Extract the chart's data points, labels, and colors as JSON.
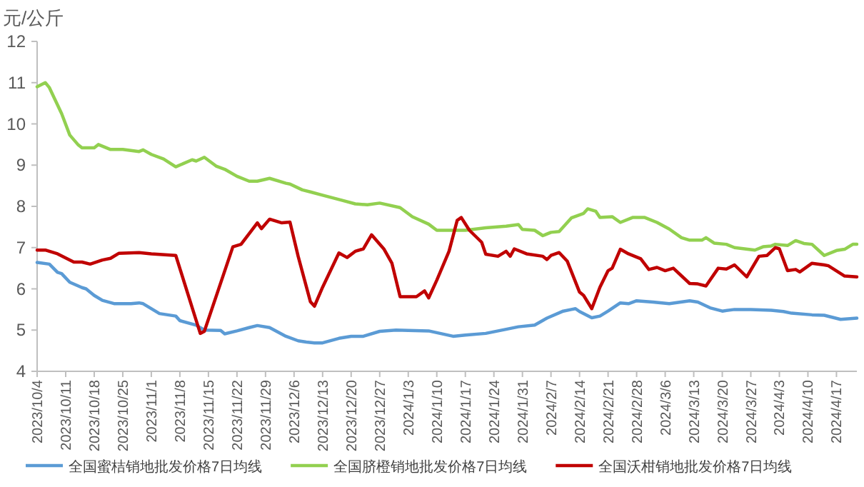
{
  "chart_data": {
    "type": "line",
    "ylabel": "元/公斤",
    "ylim": [
      4,
      12
    ],
    "yticks": [
      4,
      5,
      6,
      7,
      8,
      9,
      10,
      11,
      12
    ],
    "xlim": [
      "2023-10-04",
      "2024-04-22"
    ],
    "xticks": [
      {
        "value": "2023-10-04",
        "label": "2023/10/4"
      },
      {
        "value": "2023-10-11",
        "label": "2023/10/11"
      },
      {
        "value": "2023-10-18",
        "label": "2023/10/18"
      },
      {
        "value": "2023-10-25",
        "label": "2023/10/25"
      },
      {
        "value": "2023-11-01",
        "label": "2023/11/1"
      },
      {
        "value": "2023-11-08",
        "label": "2023/11/8"
      },
      {
        "value": "2023-11-15",
        "label": "2023/11/15"
      },
      {
        "value": "2023-11-22",
        "label": "2023/11/22"
      },
      {
        "value": "2023-11-29",
        "label": "2023/11/29"
      },
      {
        "value": "2023-12-06",
        "label": "2023/12/6"
      },
      {
        "value": "2023-12-13",
        "label": "2023/12/13"
      },
      {
        "value": "2023-12-20",
        "label": "2023/12/20"
      },
      {
        "value": "2023-12-27",
        "label": "2023/12/27"
      },
      {
        "value": "2024-01-03",
        "label": "2024/1/3"
      },
      {
        "value": "2024-01-10",
        "label": "2024/1/10"
      },
      {
        "value": "2024-01-17",
        "label": "2024/1/17"
      },
      {
        "value": "2024-01-24",
        "label": "2024/1/24"
      },
      {
        "value": "2024-01-31",
        "label": "2024/1/31"
      },
      {
        "value": "2024-02-07",
        "label": "2024/2/7"
      },
      {
        "value": "2024-02-14",
        "label": "2024/2/14"
      },
      {
        "value": "2024-02-21",
        "label": "2024/2/21"
      },
      {
        "value": "2024-02-28",
        "label": "2024/2/28"
      },
      {
        "value": "2024-03-06",
        "label": "2024/3/6"
      },
      {
        "value": "2024-03-13",
        "label": "2024/3/13"
      },
      {
        "value": "2024-03-20",
        "label": "2024/3/20"
      },
      {
        "value": "2024-03-27",
        "label": "2024/3/27"
      },
      {
        "value": "2024-04-03",
        "label": "2024/4/3"
      },
      {
        "value": "2024-04-10",
        "label": "2024/4/10"
      },
      {
        "value": "2024-04-17",
        "label": "2024/4/17"
      }
    ],
    "grid": false,
    "legend": "bottom",
    "series": [
      {
        "name": "全国蜜桔销地批发价格7日均线",
        "color": "#5b9bd5",
        "x": [
          "2023-10-04",
          "2023-10-07",
          "2023-10-09",
          "2023-10-10",
          "2023-10-12",
          "2023-10-15",
          "2023-10-16",
          "2023-10-18",
          "2023-10-20",
          "2023-10-23",
          "2023-10-27",
          "2023-10-29",
          "2023-10-30",
          "2023-11-03",
          "2023-11-07",
          "2023-11-08",
          "2023-11-12",
          "2023-11-14",
          "2023-11-18",
          "2023-11-19",
          "2023-11-22",
          "2023-11-25",
          "2023-11-27",
          "2023-11-30",
          "2023-12-04",
          "2023-12-07",
          "2023-12-09",
          "2023-12-11",
          "2023-12-13",
          "2023-12-17",
          "2023-12-20",
          "2023-12-23",
          "2023-12-27",
          "2023-12-31",
          "2024-01-03",
          "2024-01-08",
          "2024-01-14",
          "2024-01-17",
          "2024-01-22",
          "2024-01-27",
          "2024-01-30",
          "2024-02-03",
          "2024-02-06",
          "2024-02-10",
          "2024-02-12",
          "2024-02-13",
          "2024-02-14",
          "2024-02-17",
          "2024-02-19",
          "2024-02-21",
          "2024-02-24",
          "2024-02-26",
          "2024-02-28",
          "2024-03-03",
          "2024-03-07",
          "2024-03-12",
          "2024-03-14",
          "2024-03-17",
          "2024-03-20",
          "2024-03-23",
          "2024-03-27",
          "2024-04-01",
          "2024-04-04",
          "2024-04-06",
          "2024-04-11",
          "2024-04-14",
          "2024-04-18",
          "2024-04-22"
        ],
        "values": [
          6.64,
          6.6,
          6.4,
          6.37,
          6.16,
          6.03,
          6.0,
          5.84,
          5.72,
          5.64,
          5.64,
          5.66,
          5.64,
          5.4,
          5.34,
          5.23,
          5.12,
          5.0,
          4.99,
          4.91,
          4.98,
          5.06,
          5.11,
          5.06,
          4.85,
          4.74,
          4.71,
          4.69,
          4.69,
          4.8,
          4.85,
          4.85,
          4.97,
          5.0,
          4.99,
          4.98,
          4.85,
          4.88,
          4.92,
          5.02,
          5.08,
          5.12,
          5.29,
          5.46,
          5.5,
          5.52,
          5.45,
          5.3,
          5.34,
          5.46,
          5.66,
          5.64,
          5.71,
          5.68,
          5.64,
          5.71,
          5.68,
          5.54,
          5.46,
          5.5,
          5.5,
          5.48,
          5.45,
          5.41,
          5.37,
          5.36,
          5.26,
          5.29
        ]
      },
      {
        "name": "全国脐橙销地批发价格7日均线",
        "color": "#92d050",
        "x": [
          "2023-10-04",
          "2023-10-06",
          "2023-10-07",
          "2023-10-10",
          "2023-10-12",
          "2023-10-14",
          "2023-10-15",
          "2023-10-18",
          "2023-10-19",
          "2023-10-22",
          "2023-10-25",
          "2023-10-29",
          "2023-10-30",
          "2023-11-01",
          "2023-11-04",
          "2023-11-07",
          "2023-11-11",
          "2023-11-12",
          "2023-11-14",
          "2023-11-17",
          "2023-11-19",
          "2023-11-22",
          "2023-11-25",
          "2023-11-27",
          "2023-11-30",
          "2023-12-04",
          "2023-12-05",
          "2023-12-08",
          "2023-12-10",
          "2023-12-13",
          "2023-12-18",
          "2023-12-21",
          "2023-12-24",
          "2023-12-27",
          "2024-01-01",
          "2024-01-04",
          "2024-01-08",
          "2024-01-10",
          "2024-01-17",
          "2024-01-22",
          "2024-01-27",
          "2024-01-30",
          "2024-01-31",
          "2024-02-03",
          "2024-02-05",
          "2024-02-07",
          "2024-02-09",
          "2024-02-12",
          "2024-02-15",
          "2024-02-16",
          "2024-02-18",
          "2024-02-19",
          "2024-02-22",
          "2024-02-24",
          "2024-02-27",
          "2024-03-01",
          "2024-03-04",
          "2024-03-07",
          "2024-03-10",
          "2024-03-12",
          "2024-03-15",
          "2024-03-16",
          "2024-03-18",
          "2024-03-21",
          "2024-03-23",
          "2024-03-28",
          "2024-03-30",
          "2024-04-01",
          "2024-04-02",
          "2024-04-05",
          "2024-04-07",
          "2024-04-09",
          "2024-04-11",
          "2024-04-14",
          "2024-04-17",
          "2024-04-19",
          "2024-04-21",
          "2024-04-22"
        ],
        "values": [
          10.9,
          11.0,
          10.88,
          10.25,
          9.73,
          9.5,
          9.42,
          9.42,
          9.5,
          9.38,
          9.38,
          9.33,
          9.37,
          9.26,
          9.15,
          8.96,
          9.13,
          9.1,
          9.19,
          8.97,
          8.9,
          8.73,
          8.61,
          8.61,
          8.68,
          8.56,
          8.54,
          8.4,
          8.35,
          8.27,
          8.14,
          8.06,
          8.04,
          8.08,
          7.97,
          7.75,
          7.57,
          7.42,
          7.42,
          7.48,
          7.52,
          7.56,
          7.44,
          7.42,
          7.29,
          7.37,
          7.39,
          7.72,
          7.83,
          7.94,
          7.88,
          7.73,
          7.75,
          7.61,
          7.73,
          7.73,
          7.61,
          7.45,
          7.24,
          7.18,
          7.18,
          7.24,
          7.11,
          7.08,
          7.0,
          6.94,
          7.02,
          7.04,
          7.08,
          7.05,
          7.17,
          7.1,
          7.08,
          6.81,
          6.93,
          6.96,
          7.08,
          7.08
        ]
      },
      {
        "name": "全国沃柑销地批发价格7日均线",
        "color": "#c00000",
        "x": [
          "2023-10-04",
          "2023-10-06",
          "2023-10-09",
          "2023-10-13",
          "2023-10-15",
          "2023-10-17",
          "2023-10-20",
          "2023-10-22",
          "2023-10-24",
          "2023-10-29",
          "2023-11-01",
          "2023-11-07",
          "2023-11-13",
          "2023-11-14",
          "2023-11-21",
          "2023-11-23",
          "2023-11-27",
          "2023-11-28",
          "2023-11-30",
          "2023-12-03",
          "2023-12-05",
          "2023-12-07",
          "2023-12-10",
          "2023-12-11",
          "2023-12-13",
          "2023-12-17",
          "2023-12-19",
          "2023-12-21",
          "2023-12-23",
          "2023-12-25",
          "2023-12-28",
          "2023-12-30",
          "2024-01-01",
          "2024-01-05",
          "2024-01-07",
          "2024-01-08",
          "2024-01-10",
          "2024-01-13",
          "2024-01-15",
          "2024-01-16",
          "2024-01-18",
          "2024-01-21",
          "2024-01-22",
          "2024-01-25",
          "2024-01-27",
          "2024-01-28",
          "2024-01-29",
          "2024-02-01",
          "2024-02-05",
          "2024-02-06",
          "2024-02-07",
          "2024-02-09",
          "2024-02-11",
          "2024-02-14",
          "2024-02-15",
          "2024-02-17",
          "2024-02-19",
          "2024-02-21",
          "2024-02-22",
          "2024-02-24",
          "2024-02-26",
          "2024-02-29",
          "2024-03-02",
          "2024-03-04",
          "2024-03-06",
          "2024-03-08",
          "2024-03-12",
          "2024-03-14",
          "2024-03-16",
          "2024-03-19",
          "2024-03-21",
          "2024-03-23",
          "2024-03-26",
          "2024-03-29",
          "2024-03-31",
          "2024-04-02",
          "2024-04-03",
          "2024-04-05",
          "2024-04-07",
          "2024-04-08",
          "2024-04-11",
          "2024-04-14",
          "2024-04-15",
          "2024-04-19",
          "2024-04-22"
        ],
        "values": [
          6.94,
          6.94,
          6.85,
          6.65,
          6.65,
          6.6,
          6.7,
          6.74,
          6.86,
          6.88,
          6.85,
          6.81,
          4.92,
          4.97,
          7.02,
          7.08,
          7.6,
          7.46,
          7.69,
          7.6,
          7.62,
          6.79,
          5.69,
          5.58,
          6.04,
          6.87,
          6.76,
          6.91,
          6.97,
          7.31,
          6.97,
          6.62,
          5.81,
          5.81,
          5.95,
          5.78,
          6.21,
          6.91,
          7.66,
          7.73,
          7.42,
          7.13,
          6.84,
          6.79,
          6.91,
          6.79,
          6.97,
          6.85,
          6.79,
          6.71,
          6.81,
          6.88,
          6.67,
          5.92,
          5.84,
          5.52,
          6.04,
          6.44,
          6.5,
          6.96,
          6.85,
          6.73,
          6.47,
          6.52,
          6.44,
          6.5,
          6.13,
          6.12,
          6.07,
          6.5,
          6.48,
          6.58,
          6.29,
          6.79,
          6.81,
          7.0,
          6.97,
          6.44,
          6.47,
          6.41,
          6.62,
          6.58,
          6.56,
          6.31,
          6.29
        ]
      }
    ]
  }
}
